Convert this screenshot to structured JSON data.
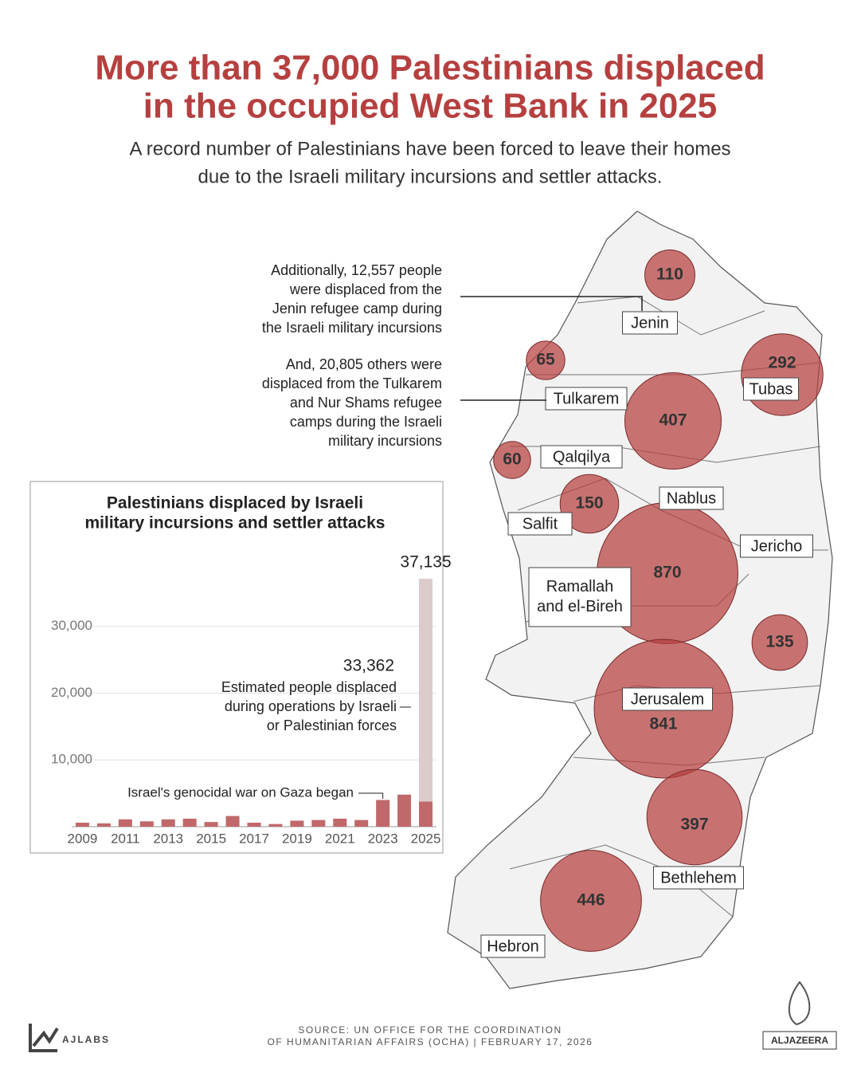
{
  "title": [
    "More than 37,000 Palestinians displaced",
    "in the occupied West Bank in 2025"
  ],
  "subtitle": [
    "A record number of Palestinians have been forced to leave their homes",
    "due to the Israeli military incursions and settler attacks."
  ],
  "map": {
    "bubbles": [
      110,
      65,
      292,
      407,
      60,
      150,
      870,
      135,
      841,
      397,
      446
    ],
    "place_labels": [
      "Jenin",
      "Tubas",
      "Tulkarem",
      "Qalqilya",
      "Nablus",
      "Salfit",
      "Jericho",
      "Ramallah and el-Bireh",
      "Jerusalem",
      "Bethlehem",
      "Hebron"
    ],
    "annotations": [
      [
        "Additionally, 12,557 people",
        "were displaced from the",
        "Jenin refugee camp during",
        "the Israeli military incursions"
      ],
      [
        "And, 20,805 others were",
        "displaced from the Tulkarem",
        "and Nur Shams refugee",
        "camps during the Israeli",
        "military incursions"
      ]
    ]
  },
  "chart_data": {
    "type": "bar",
    "title": [
      "Palestinians displaced by Israeli",
      "military incursions and settler attacks"
    ],
    "x": [
      2009,
      2010,
      2011,
      2012,
      2013,
      2014,
      2015,
      2016,
      2017,
      2018,
      2019,
      2020,
      2021,
      2022,
      2023,
      2024,
      2025
    ],
    "xlim": [
      2008.5,
      2025.5
    ],
    "xticks": [
      2009,
      2011,
      2013,
      2015,
      2017,
      2019,
      2021,
      2023,
      2025
    ],
    "ylim": [
      0,
      40000
    ],
    "yticks": [
      {
        "value": 10000,
        "label": "10,000"
      },
      {
        "value": 20000,
        "label": "20,000"
      },
      {
        "value": 30000,
        "label": "30,000"
      }
    ],
    "grid": true,
    "series": [
      {
        "color": "#c0686a",
        "values": [
          600,
          500,
          1100,
          800,
          1100,
          1200,
          700,
          1600,
          600,
          400,
          900,
          1000,
          1200,
          1000,
          4000,
          4800,
          3773
        ]
      },
      {
        "name": "Estimated people displaced during operations by Israeli or Palestinian forces",
        "color": "#dccbcb",
        "values": [
          null,
          null,
          null,
          null,
          null,
          null,
          null,
          null,
          null,
          null,
          null,
          null,
          null,
          null,
          null,
          null,
          33362
        ],
        "value_labels": [
          null,
          null,
          null,
          null,
          null,
          null,
          null,
          null,
          null,
          null,
          null,
          null,
          null,
          null,
          null,
          null,
          "33,362"
        ]
      }
    ],
    "total": {
      "value": 37135,
      "label": "37,135"
    },
    "annotation": {
      "text": "Israel's genocidal war on Gaza began",
      "x": 2023
    }
  },
  "footer": {
    "source": [
      "SOURCE:  UN OFFICE FOR THE COORDINATION",
      "OF HUMANITARIAN AFFAIRS (OCHA)  |  FEBRUARY 17, 2026"
    ],
    "left_logo": "AJLABS",
    "right_logo": "ALJAZEERA"
  }
}
